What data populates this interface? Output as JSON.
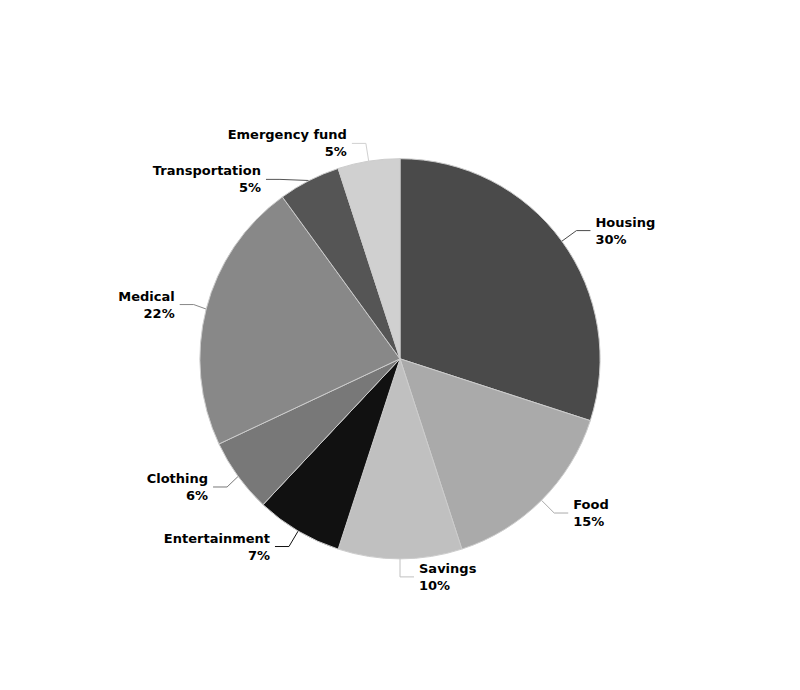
{
  "chart_data": {
    "type": "pie",
    "categories": [
      "Housing",
      "Food",
      "Savings",
      "Entertainment",
      "Clothing",
      "Medical",
      "Transportation",
      "Emergency fund"
    ],
    "values": [
      30,
      15,
      10,
      7,
      6,
      22,
      5,
      5
    ],
    "value_labels": [
      "30%",
      "15%",
      "10%",
      "7%",
      "6%",
      "22%",
      "5%",
      "5%"
    ],
    "colors": [
      "#4a4a4a",
      "#aaaaaa",
      "#c0c0c0",
      "#111111",
      "#787878",
      "#888888",
      "#555555",
      "#d0d0d0"
    ],
    "data_labels": true
  }
}
